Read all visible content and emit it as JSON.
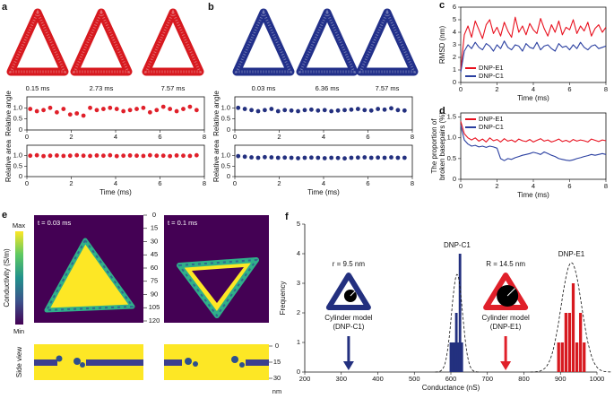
{
  "snapshots": [
    {
      "panel": "a",
      "color": "#d7191f",
      "captions": [
        "0.15 ms",
        "2.73 ms",
        "7.57 ms"
      ]
    },
    {
      "panel": "b",
      "color": "#22308a",
      "captions": [
        "0.03 ms",
        "6.36 ms",
        "7.57 ms"
      ]
    }
  ],
  "maps": {
    "panel": "e",
    "times": [
      "t = 0.03 ms",
      "t = 0.1 ms"
    ],
    "colorbar": {
      "label": "Conductivity (S/m)",
      "max": "Max",
      "min": "Min"
    },
    "ylim": [
      0,
      120
    ],
    "yticks": [
      0,
      15,
      30,
      45,
      60,
      75,
      90,
      105,
      120
    ],
    "side": {
      "label": "Side view",
      "ylim": [
        0,
        30
      ],
      "yticks": [
        0,
        15,
        30
      ],
      "unit": "nm"
    }
  },
  "chart_data": [
    {
      "type": "scatter",
      "ylabel": "Relative angle",
      "color": "#e0202a",
      "x": [
        0.15,
        0.45,
        0.75,
        1.05,
        1.35,
        1.65,
        1.95,
        2.25,
        2.55,
        2.85,
        3.15,
        3.45,
        3.75,
        4.05,
        4.35,
        4.65,
        4.95,
        5.25,
        5.55,
        5.85,
        6.15,
        6.45,
        6.75,
        7.05,
        7.35,
        7.65
      ],
      "values": [
        0.95,
        0.85,
        0.9,
        1.0,
        0.8,
        0.95,
        0.7,
        0.75,
        0.65,
        1.0,
        0.9,
        0.95,
        1.0,
        0.95,
        0.85,
        0.9,
        0.95,
        1.0,
        0.8,
        0.9,
        1.05,
        0.95,
        0.85,
        0.95,
        1.05,
        0.9
      ],
      "xlim": [
        0,
        8
      ],
      "xticks": [
        0,
        2,
        4,
        6,
        8
      ],
      "ylim": [
        0,
        1.5
      ],
      "yticks": [
        0,
        0.5,
        {
          "value": 1,
          "label": "1.0"
        }
      ]
    },
    {
      "type": "scatter",
      "panel": null,
      "ylabel": "Relative area",
      "xlabel": "Time (ms)",
      "color": "#e0202a",
      "x": [
        0.15,
        0.45,
        0.75,
        1.05,
        1.35,
        1.65,
        1.95,
        2.25,
        2.55,
        2.85,
        3.15,
        3.45,
        3.75,
        4.05,
        4.35,
        4.65,
        4.95,
        5.25,
        5.55,
        5.85,
        6.15,
        6.45,
        6.75,
        7.05,
        7.35,
        7.65
      ],
      "values": [
        1.0,
        1.02,
        0.98,
        1.0,
        1.01,
        0.99,
        1.0,
        1.02,
        1.0,
        0.99,
        1.01,
        1.0,
        1.02,
        0.98,
        1.0,
        1.01,
        1.0,
        0.99,
        1.02,
        1.0,
        1.0,
        0.98,
        1.01,
        1.0,
        0.99,
        1.02
      ],
      "xlim": [
        0,
        8
      ],
      "xticks": [
        0,
        2,
        4,
        6,
        8
      ],
      "ylim": [
        0,
        1.5
      ],
      "yticks": [
        0,
        0.5,
        {
          "value": 1,
          "label": "1.0"
        }
      ]
    },
    {
      "type": "scatter",
      "ylabel": "Relative angle",
      "color": "#23307f",
      "x": [
        0.15,
        0.45,
        0.75,
        1.05,
        1.35,
        1.65,
        1.95,
        2.25,
        2.55,
        2.85,
        3.15,
        3.45,
        3.75,
        4.05,
        4.35,
        4.65,
        4.95,
        5.25,
        5.55,
        5.85,
        6.15,
        6.45,
        6.75,
        7.05,
        7.35,
        7.65
      ],
      "values": [
        1.0,
        0.95,
        0.9,
        0.85,
        0.9,
        0.95,
        0.85,
        0.9,
        0.88,
        0.85,
        0.9,
        0.92,
        0.88,
        0.9,
        0.85,
        0.88,
        0.9,
        0.92,
        0.95,
        0.9,
        0.88,
        0.95,
        0.92,
        0.98,
        0.9,
        0.88
      ],
      "xlim": [
        0,
        8
      ],
      "xticks": [
        0,
        2,
        4,
        6,
        8
      ],
      "ylim": [
        0,
        1.5
      ],
      "yticks": [
        0,
        0.5,
        {
          "value": 1,
          "label": "1.0"
        }
      ]
    },
    {
      "type": "scatter",
      "ylabel": "Relative area",
      "xlabel": "Time (ms)",
      "color": "#23307f",
      "x": [
        0.15,
        0.45,
        0.75,
        1.05,
        1.35,
        1.65,
        1.95,
        2.25,
        2.55,
        2.85,
        3.15,
        3.45,
        3.75,
        4.05,
        4.35,
        4.65,
        4.95,
        5.25,
        5.55,
        5.85,
        6.15,
        6.45,
        6.75,
        7.05,
        7.35,
        7.65
      ],
      "values": [
        0.98,
        0.95,
        0.92,
        0.9,
        0.93,
        0.92,
        0.9,
        0.91,
        0.9,
        0.88,
        0.9,
        0.91,
        0.9,
        0.88,
        0.9,
        0.89,
        0.87,
        0.9,
        0.91,
        0.92,
        0.9,
        0.91,
        0.9,
        0.92,
        0.9,
        0.9
      ],
      "xlim": [
        0,
        8
      ],
      "xticks": [
        0,
        2,
        4,
        6,
        8
      ],
      "ylim": [
        0,
        1.5
      ],
      "yticks": [
        0,
        0.5,
        {
          "value": 1,
          "label": "1.0"
        }
      ]
    },
    {
      "type": "line",
      "panel": "c",
      "ylabel": "RMSD (nm)",
      "xlabel": "Time (ms)",
      "legend": "lower left",
      "x": [
        0,
        0.2,
        0.4,
        0.6,
        0.8,
        1,
        1.2,
        1.4,
        1.6,
        1.8,
        2,
        2.2,
        2.4,
        2.6,
        2.8,
        3,
        3.2,
        3.4,
        3.6,
        3.8,
        4,
        4.2,
        4.4,
        4.6,
        4.8,
        5,
        5.2,
        5.4,
        5.6,
        5.8,
        6,
        6.2,
        6.4,
        6.6,
        6.8,
        7,
        7.2,
        7.4,
        7.6,
        7.8,
        8
      ],
      "series": [
        {
          "name": "DNP-E1",
          "color": "#e8101e",
          "values": [
            1.0,
            3.8,
            4.5,
            3.6,
            4.9,
            4.2,
            3.5,
            4.6,
            5.0,
            3.9,
            4.4,
            3.7,
            4.8,
            4.1,
            3.6,
            5.2,
            4.0,
            4.5,
            3.8,
            4.7,
            4.2,
            3.9,
            5.1,
            4.3,
            3.7,
            4.6,
            4.0,
            4.9,
            3.8,
            4.4,
            4.2,
            5.0,
            3.9,
            4.5,
            4.1,
            4.8,
            3.7,
            4.3,
            4.6,
            4.0,
            4.4
          ]
        },
        {
          "name": "DNP-C1",
          "color": "#2a3fa0",
          "values": [
            0.8,
            2.5,
            3.0,
            2.7,
            3.2,
            2.8,
            2.6,
            3.1,
            2.9,
            2.5,
            3.0,
            2.7,
            3.3,
            2.8,
            2.6,
            3.0,
            2.9,
            2.5,
            3.1,
            2.8,
            2.7,
            3.2,
            2.6,
            2.9,
            3.0,
            2.7,
            2.5,
            3.1,
            2.8,
            2.9,
            2.6,
            3.0,
            2.7,
            3.2,
            2.8,
            2.6,
            2.9,
            3.0,
            2.7,
            2.8,
            2.9
          ]
        }
      ],
      "xlim": [
        0,
        8
      ],
      "xticks": [
        0,
        2,
        4,
        6,
        8
      ],
      "ylim": [
        0,
        6
      ],
      "yticks": [
        0,
        1,
        2,
        3,
        4,
        5,
        6
      ]
    },
    {
      "type": "line",
      "panel": "d",
      "ylabel": [
        "The proportion of",
        "broken basepairs (%)"
      ],
      "xlabel": "Time (ms)",
      "legend": "upper left",
      "x": [
        0,
        0.2,
        0.4,
        0.6,
        0.8,
        1,
        1.2,
        1.4,
        1.6,
        1.8,
        2,
        2.2,
        2.4,
        2.6,
        2.8,
        3,
        3.2,
        3.4,
        3.6,
        3.8,
        4,
        4.2,
        4.4,
        4.6,
        4.8,
        5,
        5.2,
        5.4,
        5.6,
        5.8,
        6,
        6.2,
        6.4,
        6.6,
        6.8,
        7,
        7.2,
        7.4,
        7.6,
        7.8,
        8
      ],
      "series": [
        {
          "name": "DNP-E1",
          "color": "#e8101e",
          "values": [
            1.4,
            1.1,
            1.0,
            0.95,
            1.0,
            0.92,
            0.97,
            0.9,
            1.0,
            0.93,
            0.96,
            0.9,
            0.98,
            0.92,
            0.95,
            0.9,
            0.97,
            0.93,
            0.91,
            0.96,
            0.9,
            0.94,
            0.98,
            0.92,
            0.95,
            0.9,
            0.93,
            0.97,
            0.91,
            0.94,
            0.9,
            0.96,
            0.92,
            0.95,
            0.93,
            0.9,
            0.97,
            0.94,
            0.91,
            0.95,
            0.93
          ]
        },
        {
          "name": "DNP-C1",
          "color": "#2a3fa0",
          "values": [
            1.3,
            0.95,
            0.85,
            0.8,
            0.82,
            0.78,
            0.8,
            0.77,
            0.8,
            0.78,
            0.75,
            0.5,
            0.45,
            0.5,
            0.48,
            0.52,
            0.55,
            0.58,
            0.6,
            0.62,
            0.65,
            0.63,
            0.6,
            0.66,
            0.62,
            0.58,
            0.55,
            0.5,
            0.48,
            0.46,
            0.45,
            0.47,
            0.5,
            0.52,
            0.55,
            0.57,
            0.6,
            0.58,
            0.6,
            0.62,
            0.6
          ]
        }
      ],
      "xlim": [
        0,
        8
      ],
      "xticks": [
        0,
        2,
        4,
        6,
        8
      ],
      "ylim": [
        0,
        1.6
      ],
      "yticks": [
        0,
        0.5,
        {
          "value": 1,
          "label": "1.0"
        },
        1.5
      ]
    },
    {
      "type": "bar",
      "panel": "f",
      "ylabel": "Frequency",
      "xlabel": "Conductance (nS)",
      "series": [
        {
          "name": "DNP-C1",
          "color": "#23307f",
          "x": [
            600,
            605,
            610,
            615,
            620,
            625,
            630
          ],
          "values": [
            1,
            1,
            1,
            2,
            1,
            4,
            1
          ],
          "fit": {
            "mean": 617,
            "sd": 15,
            "peak": 3.3
          }
        },
        {
          "name": "DNP-E1",
          "color": "#d7191f",
          "x": [
            895,
            905,
            915,
            925,
            935,
            945,
            955,
            965
          ],
          "values": [
            1,
            1,
            2,
            2,
            3,
            1,
            2,
            1
          ],
          "fit": {
            "mean": 930,
            "sd": 28,
            "peak": 3.7
          }
        }
      ],
      "arrows": [
        {
          "x": 320,
          "color": "#23307f",
          "radius_label": "r = 9.5 nm",
          "label": [
            "Cylinder model",
            "(DNP-C1)"
          ]
        },
        {
          "x": 750,
          "color": "#e0202a",
          "radius_label": "R = 14.5 nm",
          "label": [
            "Cylinder model",
            "(DNP-E1)"
          ]
        }
      ],
      "xlim": [
        200,
        1000
      ],
      "xticks": [
        200,
        300,
        400,
        500,
        600,
        700,
        800,
        900,
        1000
      ],
      "ylim": [
        0,
        5
      ],
      "yticks": [
        0,
        1,
        2,
        3,
        4,
        5
      ]
    }
  ]
}
